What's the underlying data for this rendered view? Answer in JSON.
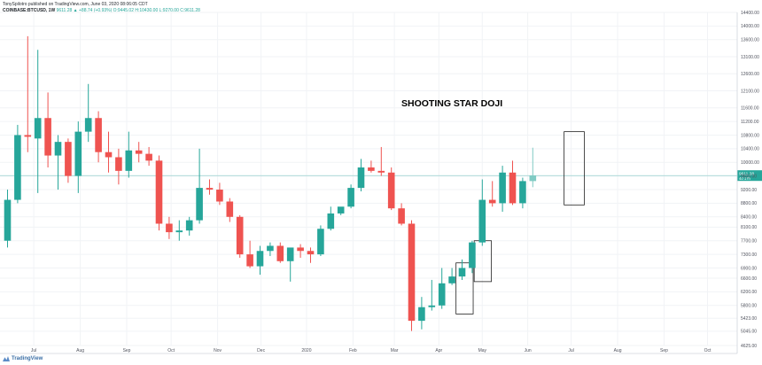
{
  "header": {
    "publisher_line": "TonySpilotro published on TradingView.com, June 03, 2020 08:06:05 CDT",
    "symbol_line": "COINBASE:BTCUSD, 1W",
    "ohlc_text": "9611.28  ▲ +88.74 (+0.93%)  O:9445.02  H:10430.00  L:9270.00  C:9611.28"
  },
  "footer": {
    "logo_text": "TradingView"
  },
  "colors": {
    "up": "#26a69a",
    "down": "#ef5350",
    "current_up": "#80cbc4",
    "price_line": "#26a69a"
  },
  "chart_data": {
    "type": "candlestick",
    "timeframe": "1W",
    "symbol": "COINBASE:BTCUSD",
    "annotation": "SHOOTING STAR DOJI",
    "ylim": [
      4625,
      14400
    ],
    "current_price": 9611.28,
    "current_price_label": "9611.28",
    "current_price_countdown": "4d 17h",
    "y_ticks": [
      4625,
      5045,
      5423,
      5800,
      6200,
      6600,
      6900,
      7300,
      7700,
      8100,
      8400,
      8800,
      9200,
      9600,
      10000,
      10400,
      10800,
      11200,
      11600,
      12100,
      12600,
      13100,
      13600,
      14000,
      14400
    ],
    "y_tick_labels": [
      "4625.00",
      "5045.00",
      "5423.00",
      "5800.00",
      "6200.00",
      "6600.00",
      "6900.00",
      "7300.00",
      "7700.00",
      "8100.00",
      "8400.00",
      "8800.00",
      "9200.00",
      "9600.00",
      "10000.00",
      "10400.00",
      "10800.00",
      "11200.00",
      "11600.00",
      "12100.00",
      "12600.00",
      "13100.00",
      "13600.00",
      "14000.00",
      "14400.00"
    ],
    "x_labels": [
      {
        "label": "Jul",
        "week": 2.6
      },
      {
        "label": "Aug",
        "week": 7.2
      },
      {
        "label": "Sep",
        "week": 11.8
      },
      {
        "label": "Oct",
        "week": 16.2
      },
      {
        "label": "Nov",
        "week": 20.8
      },
      {
        "label": "Dec",
        "week": 25.1
      },
      {
        "label": "2020",
        "week": 29.6
      },
      {
        "label": "Feb",
        "week": 34.2
      },
      {
        "label": "Mar",
        "week": 38.3
      },
      {
        "label": "Apr",
        "week": 42.7
      },
      {
        "label": "May",
        "week": 47.0
      },
      {
        "label": "Jun",
        "week": 51.5
      },
      {
        "label": "Jul",
        "week": 55.8
      },
      {
        "label": "Aug",
        "week": 60.4
      },
      {
        "label": "Sep",
        "week": 65.0
      },
      {
        "label": "Oct",
        "week": 69.3
      }
    ],
    "candles": [
      {
        "o": 7700,
        "h": 9200,
        "l": 7500,
        "c": 8900
      },
      {
        "o": 8900,
        "h": 11100,
        "l": 8800,
        "c": 10800
      },
      {
        "o": 10800,
        "h": 13700,
        "l": 10300,
        "c": 10750
      },
      {
        "o": 10700,
        "h": 13300,
        "l": 9100,
        "c": 11300
      },
      {
        "o": 11300,
        "h": 12050,
        "l": 9850,
        "c": 10200
      },
      {
        "o": 10200,
        "h": 10800,
        "l": 9200,
        "c": 10600
      },
      {
        "o": 10600,
        "h": 10700,
        "l": 9400,
        "c": 9600
      },
      {
        "o": 9600,
        "h": 11200,
        "l": 9100,
        "c": 10900
      },
      {
        "o": 10900,
        "h": 12300,
        "l": 10600,
        "c": 11300
      },
      {
        "o": 11300,
        "h": 11500,
        "l": 10000,
        "c": 10300
      },
      {
        "o": 10300,
        "h": 10900,
        "l": 9700,
        "c": 10150
      },
      {
        "o": 10150,
        "h": 10400,
        "l": 9350,
        "c": 9750
      },
      {
        "o": 9750,
        "h": 10900,
        "l": 9550,
        "c": 10350
      },
      {
        "o": 10350,
        "h": 10600,
        "l": 10000,
        "c": 10250
      },
      {
        "o": 10250,
        "h": 10450,
        "l": 9900,
        "c": 10050
      },
      {
        "o": 10050,
        "h": 10200,
        "l": 8000,
        "c": 8200
      },
      {
        "o": 8200,
        "h": 8400,
        "l": 7750,
        "c": 7950
      },
      {
        "o": 7950,
        "h": 8300,
        "l": 7700,
        "c": 8000
      },
      {
        "o": 8000,
        "h": 8400,
        "l": 7850,
        "c": 8300
      },
      {
        "o": 8300,
        "h": 10400,
        "l": 8200,
        "c": 9250
      },
      {
        "o": 9250,
        "h": 9500,
        "l": 9050,
        "c": 9200
      },
      {
        "o": 9200,
        "h": 9400,
        "l": 8750,
        "c": 8850
      },
      {
        "o": 8850,
        "h": 8950,
        "l": 8250,
        "c": 8400
      },
      {
        "o": 8400,
        "h": 8450,
        "l": 7200,
        "c": 7300
      },
      {
        "o": 7300,
        "h": 7700,
        "l": 6900,
        "c": 6950
      },
      {
        "o": 6950,
        "h": 7550,
        "l": 6700,
        "c": 7400
      },
      {
        "o": 7400,
        "h": 7650,
        "l": 7250,
        "c": 7550
      },
      {
        "o": 7550,
        "h": 7650,
        "l": 7050,
        "c": 7100
      },
      {
        "o": 7100,
        "h": 7450,
        "l": 6500,
        "c": 7500
      },
      {
        "o": 7500,
        "h": 7600,
        "l": 7200,
        "c": 7400
      },
      {
        "o": 7400,
        "h": 7500,
        "l": 7050,
        "c": 7300
      },
      {
        "o": 7300,
        "h": 8150,
        "l": 7250,
        "c": 8050
      },
      {
        "o": 8050,
        "h": 8700,
        "l": 8000,
        "c": 8500
      },
      {
        "o": 8500,
        "h": 8650,
        "l": 8450,
        "c": 8700
      },
      {
        "o": 8700,
        "h": 9350,
        "l": 8650,
        "c": 9250
      },
      {
        "o": 9250,
        "h": 10100,
        "l": 9150,
        "c": 9850
      },
      {
        "o": 9850,
        "h": 10050,
        "l": 9700,
        "c": 9750
      },
      {
        "o": 9750,
        "h": 10450,
        "l": 9600,
        "c": 9700
      },
      {
        "o": 9700,
        "h": 9850,
        "l": 8600,
        "c": 8650
      },
      {
        "o": 8650,
        "h": 8800,
        "l": 8150,
        "c": 8200
      },
      {
        "o": 8200,
        "h": 8300,
        "l": 5050,
        "c": 5350
      },
      {
        "o": 5350,
        "h": 6050,
        "l": 5100,
        "c": 5750
      },
      {
        "o": 5750,
        "h": 6550,
        "l": 5650,
        "c": 5800
      },
      {
        "o": 5800,
        "h": 6900,
        "l": 5700,
        "c": 6450
      },
      {
        "o": 6450,
        "h": 6900,
        "l": 6400,
        "c": 6650
      },
      {
        "o": 6650,
        "h": 7150,
        "l": 6550,
        "c": 6900
      },
      {
        "o": 6900,
        "h": 7700,
        "l": 6750,
        "c": 7650
      },
      {
        "o": 7650,
        "h": 9500,
        "l": 7550,
        "c": 8900
      },
      {
        "o": 8900,
        "h": 9450,
        "l": 8700,
        "c": 8800
      },
      {
        "o": 8800,
        "h": 9900,
        "l": 8550,
        "c": 9700
      },
      {
        "o": 9700,
        "h": 10050,
        "l": 8750,
        "c": 8800
      },
      {
        "o": 8800,
        "h": 9550,
        "l": 8650,
        "c": 9450
      },
      {
        "o": 9450,
        "h": 10430,
        "l": 9270,
        "c": 9611.28,
        "current": true
      }
    ],
    "boxes": [
      {
        "from_week": 44.4,
        "to_week": 46.1,
        "top": 7050,
        "bottom": 5550
      },
      {
        "from_week": 46.2,
        "to_week": 47.9,
        "top": 7700,
        "bottom": 6500
      },
      {
        "from_week": 55.1,
        "to_week": 57.1,
        "top": 10900,
        "bottom": 8750
      }
    ]
  }
}
